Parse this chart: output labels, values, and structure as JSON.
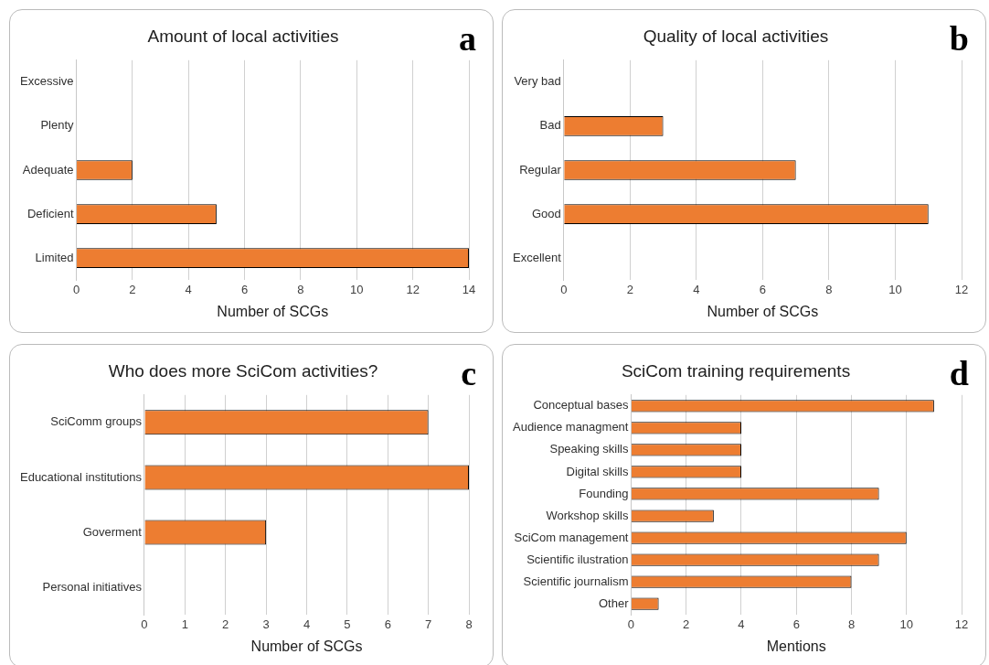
{
  "chart_data": [
    {
      "type": "bar",
      "orientation": "horizontal",
      "title": "Amount of local activities",
      "xlabel": "Number of SCGs",
      "categories": [
        "Excessive",
        "Plenty",
        "Adequate",
        "Deficient",
        "Limited"
      ],
      "values": [
        0,
        0,
        2,
        5,
        14
      ],
      "color": "#ed7d31",
      "xlim": [
        0,
        14
      ],
      "xticks": [
        0,
        2,
        4,
        6,
        8,
        10,
        12,
        14
      ],
      "grid": "x",
      "annotations": [
        "a"
      ]
    },
    {
      "type": "bar",
      "orientation": "horizontal",
      "title": "Quality of local activities",
      "xlabel": "Number of SCGs",
      "categories": [
        "Very bad",
        "Bad",
        "Regular",
        "Good",
        "Excellent"
      ],
      "values": [
        0,
        3,
        7,
        11,
        0
      ],
      "color": "#ed7d31",
      "xlim": [
        0,
        12
      ],
      "xticks": [
        0,
        2,
        4,
        6,
        8,
        10,
        12
      ],
      "grid": "x",
      "annotations": [
        "b"
      ]
    },
    {
      "type": "bar",
      "orientation": "horizontal",
      "title": "Who does more SciCom activities?",
      "xlabel": "Number of SCGs",
      "categories": [
        "SciComm groups",
        "Educational institutions",
        "Goverment",
        "Personal initiatives"
      ],
      "values": [
        7,
        8,
        3,
        0
      ],
      "color": "#ed7d31",
      "xlim": [
        0,
        8
      ],
      "xticks": [
        0,
        1,
        2,
        3,
        4,
        5,
        6,
        7,
        8
      ],
      "grid": "x",
      "annotations": [
        "c"
      ]
    },
    {
      "type": "bar",
      "orientation": "horizontal",
      "title": "SciCom training requirements",
      "xlabel": "Mentions",
      "categories": [
        "Conceptual bases",
        "Audience managment",
        "Speaking skills",
        "Digital skills",
        "Founding",
        "Workshop skills",
        "SciCom management",
        "Scientific ilustration",
        "Scientific journalism",
        "Other"
      ],
      "values": [
        11,
        4,
        4,
        4,
        9,
        3,
        10,
        9,
        8,
        1
      ],
      "color": "#ed7d31",
      "xlim": [
        0,
        12
      ],
      "xticks": [
        0,
        2,
        4,
        6,
        8,
        10,
        12
      ],
      "grid": "x",
      "annotations": [
        "d"
      ]
    }
  ]
}
